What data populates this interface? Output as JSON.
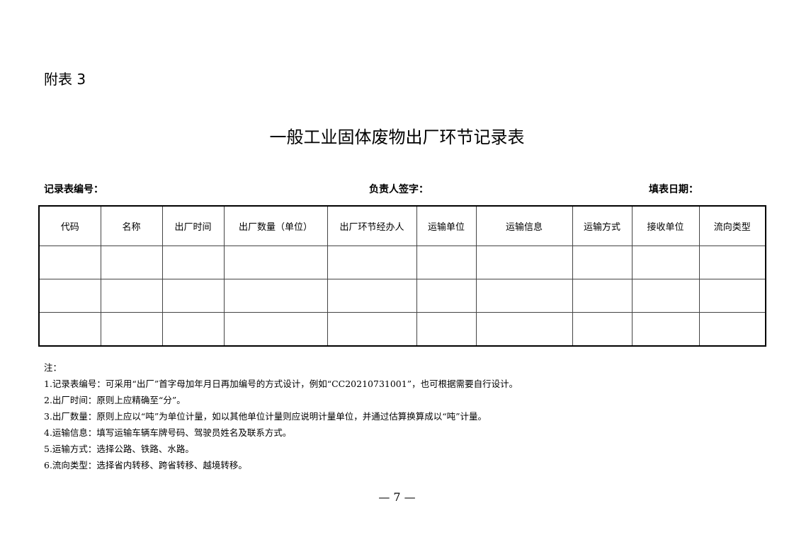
{
  "appendix_label": "附表 3",
  "title": "一般工业固体废物出厂环节记录表",
  "fields": {
    "record_no": "记录表编号：",
    "signature": "负责人签字：",
    "date": "填表日期："
  },
  "table": {
    "headers": [
      "代码",
      "名称",
      "出厂时间",
      "出厂数量（单位）",
      "出厂环节经办人",
      "运输单位",
      "运输信息",
      "运输方式",
      "接收单位",
      "流向类型"
    ],
    "rows": [
      [
        "",
        "",
        "",
        "",
        "",
        "",
        "",
        "",
        "",
        ""
      ],
      [
        "",
        "",
        "",
        "",
        "",
        "",
        "",
        "",
        "",
        ""
      ],
      [
        "",
        "",
        "",
        "",
        "",
        "",
        "",
        "",
        "",
        ""
      ]
    ]
  },
  "notes": {
    "heading": "注：",
    "items": [
      "1.记录表编号：可采用“出厂”首字母加年月日再加编号的方式设计，例如“CC20210731001”，也可根据需要自行设计。",
      "2.出厂时间：原则上应精确至“分”。",
      "3.出厂数量：原则上应以“吨”为单位计量，如以其他单位计量则应说明计量单位，并通过估算换算成以“吨”计量。",
      "4.运输信息：填写运输车辆车牌号码、驾驶员姓名及联系方式。",
      "5.运输方式：选择公路、铁路、水路。",
      "6.流向类型：选择省内转移、跨省转移、越境转移。"
    ]
  },
  "page_number": "— 7 —"
}
